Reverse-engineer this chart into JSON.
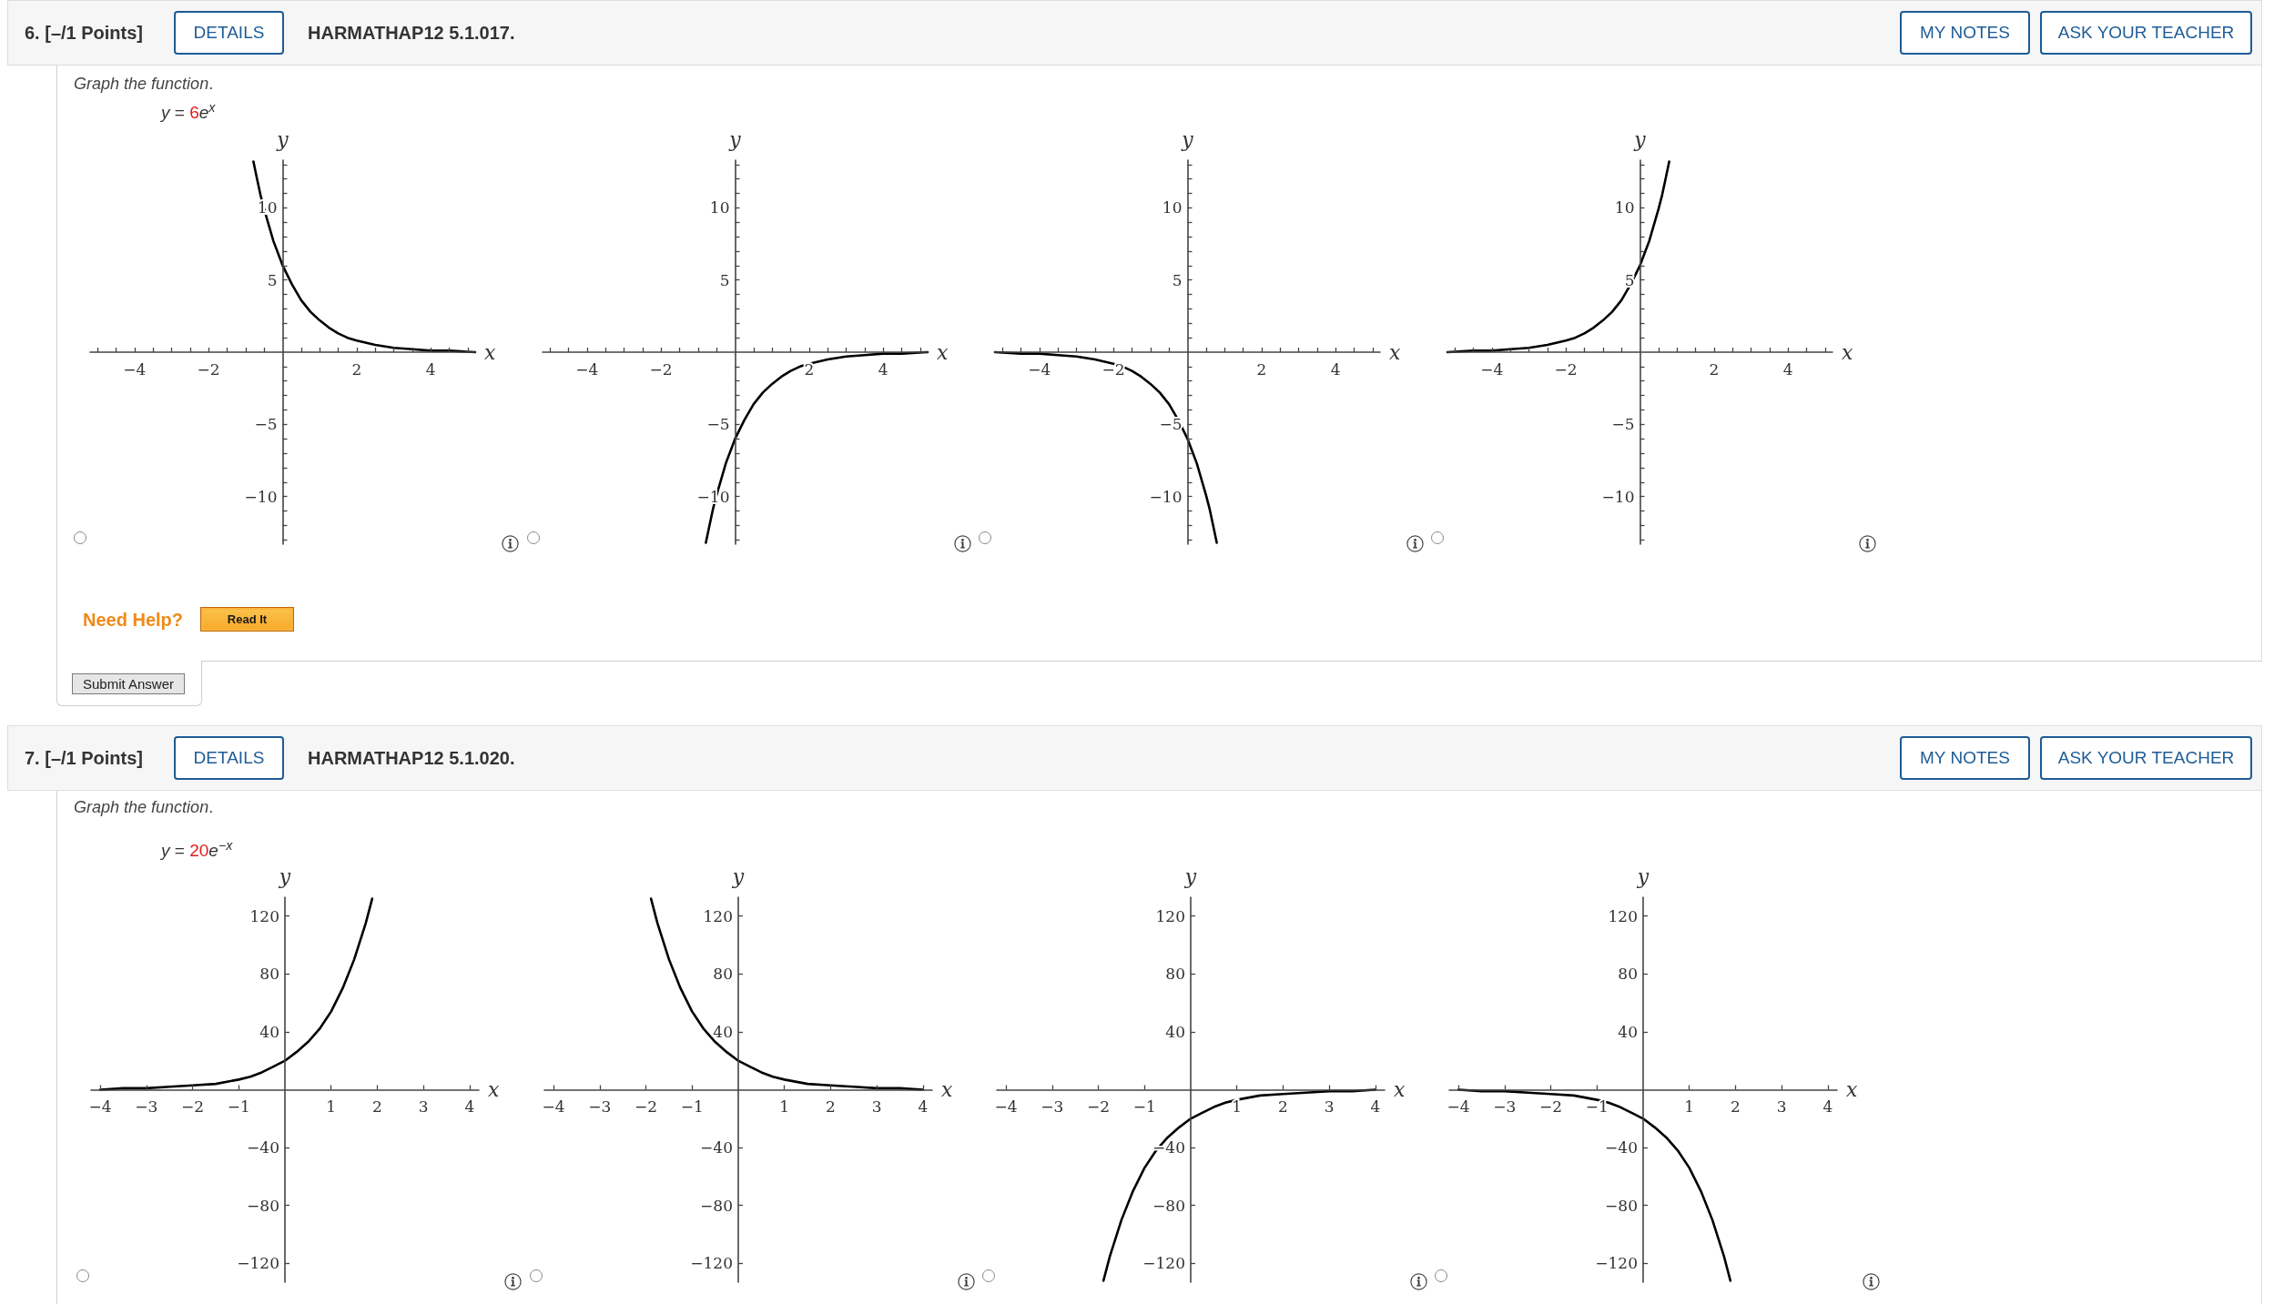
{
  "chart_data": [
    {
      "type": "line",
      "title": "Graph the function.",
      "subtitle": "y = 6e$^{x}$",
      "annotations": [
        "6. [–/1 Points]",
        "DETAILS",
        "HARMATHAP12 5.1.017.",
        "MY NOTES",
        "ASK YOUR TEACHER",
        "Need Help?",
        "Read It",
        "Submit Answer"
      ],
      "xlabel": "x",
      "ylabel": "y",
      "x": [
        -0.79,
        -0.7,
        -0.6,
        -0.5,
        -0.25,
        0,
        0.25,
        0.5,
        0.75,
        1,
        1.25,
        1.5,
        1.75,
        2,
        2.5,
        3,
        3.5,
        4,
        4.5,
        5.2
      ],
      "values": [
        13.2,
        12.1,
        10.9,
        9.9,
        7.7,
        6.0,
        4.7,
        3.6,
        2.8,
        2.2,
        1.7,
        1.3,
        1.0,
        0.8,
        0.5,
        0.3,
        0.2,
        0.1,
        0.1,
        0.0
      ],
      "color": "#000000",
      "xlim": [
        -5.2,
        5.2
      ],
      "ylim": [
        -13.3,
        13.3
      ],
      "xticks": [
        {
          "value": -5,
          "label": null
        },
        {
          "value": -4.5,
          "label": null
        },
        {
          "value": -4,
          "label": "−4"
        },
        {
          "value": -3.5,
          "label": null
        },
        {
          "value": -3,
          "label": null
        },
        {
          "value": -2.5,
          "label": null
        },
        {
          "value": -2,
          "label": "−2"
        },
        {
          "value": -1.5,
          "label": null
        },
        {
          "value": -1,
          "label": null
        },
        {
          "value": -0.5,
          "label": null
        },
        {
          "value": 0.5,
          "label": null
        },
        {
          "value": 1,
          "label": null
        },
        {
          "value": 1.5,
          "label": null
        },
        2,
        {
          "value": 2.5,
          "label": null
        },
        {
          "value": 3,
          "label": null
        },
        {
          "value": 3.5,
          "label": null
        },
        4,
        {
          "value": 4.5,
          "label": null
        },
        {
          "value": 5,
          "label": null
        }
      ],
      "yticks": [
        {
          "value": -13,
          "label": null
        },
        {
          "value": -12,
          "label": null
        },
        {
          "value": -11,
          "label": null
        },
        {
          "value": -10,
          "label": "−10"
        },
        {
          "value": -9,
          "label": null
        },
        {
          "value": -8,
          "label": null
        },
        {
          "value": -7,
          "label": null
        },
        {
          "value": -6,
          "label": null
        },
        {
          "value": -5,
          "label": "−5"
        },
        {
          "value": -4,
          "label": null
        },
        {
          "value": -3,
          "label": null
        },
        {
          "value": -2,
          "label": null
        },
        {
          "value": -1,
          "label": null
        },
        {
          "value": 1,
          "label": null
        },
        {
          "value": 2,
          "label": null
        },
        {
          "value": 3,
          "label": null
        },
        {
          "value": 4,
          "label": null
        },
        5,
        {
          "value": 6,
          "label": null
        },
        {
          "value": 7,
          "label": null
        },
        {
          "value": 8,
          "label": null
        },
        {
          "value": 9,
          "label": null
        },
        10,
        {
          "value": 11,
          "label": null
        },
        {
          "value": 12,
          "label": null
        },
        {
          "value": 13,
          "label": null
        }
      ]
    },
    {
      "type": "line",
      "xlabel": "x",
      "ylabel": "y",
      "x": [
        -0.79,
        -0.7,
        -0.6,
        -0.5,
        -0.25,
        0,
        0.25,
        0.5,
        0.75,
        1,
        1.25,
        1.5,
        1.75,
        2,
        2.5,
        3,
        3.5,
        4,
        4.5,
        5.2
      ],
      "values": [
        -13.2,
        -12.1,
        -10.9,
        -9.9,
        -7.7,
        -6.0,
        -4.7,
        -3.6,
        -2.8,
        -2.2,
        -1.7,
        -1.3,
        -1.0,
        -0.8,
        -0.5,
        -0.3,
        -0.2,
        -0.1,
        -0.1,
        0.0
      ],
      "color": "#000000",
      "xlim": [
        -5.2,
        5.2
      ],
      "ylim": [
        -13.3,
        13.3
      ],
      "xticks": [
        {
          "value": -5,
          "label": null
        },
        {
          "value": -4.5,
          "label": null
        },
        {
          "value": -4,
          "label": "−4"
        },
        {
          "value": -3.5,
          "label": null
        },
        {
          "value": -3,
          "label": null
        },
        {
          "value": -2.5,
          "label": null
        },
        {
          "value": -2,
          "label": "−2"
        },
        {
          "value": -1.5,
          "label": null
        },
        {
          "value": -1,
          "label": null
        },
        {
          "value": -0.5,
          "label": null
        },
        {
          "value": 0.5,
          "label": null
        },
        {
          "value": 1,
          "label": null
        },
        {
          "value": 1.5,
          "label": null
        },
        2,
        {
          "value": 2.5,
          "label": null
        },
        {
          "value": 3,
          "label": null
        },
        {
          "value": 3.5,
          "label": null
        },
        4,
        {
          "value": 4.5,
          "label": null
        },
        {
          "value": 5,
          "label": null
        }
      ],
      "yticks": [
        {
          "value": -13,
          "label": null
        },
        {
          "value": -12,
          "label": null
        },
        {
          "value": -11,
          "label": null
        },
        {
          "value": -10,
          "label": "−10"
        },
        {
          "value": -9,
          "label": null
        },
        {
          "value": -8,
          "label": null
        },
        {
          "value": -7,
          "label": null
        },
        {
          "value": -6,
          "label": null
        },
        {
          "value": -5,
          "label": "−5"
        },
        {
          "value": -4,
          "label": null
        },
        {
          "value": -3,
          "label": null
        },
        {
          "value": -2,
          "label": null
        },
        {
          "value": -1,
          "label": null
        },
        {
          "value": 1,
          "label": null
        },
        {
          "value": 2,
          "label": null
        },
        {
          "value": 3,
          "label": null
        },
        {
          "value": 4,
          "label": null
        },
        5,
        {
          "value": 6,
          "label": null
        },
        {
          "value": 7,
          "label": null
        },
        {
          "value": 8,
          "label": null
        },
        {
          "value": 9,
          "label": null
        },
        10,
        {
          "value": 11,
          "label": null
        },
        {
          "value": 12,
          "label": null
        },
        {
          "value": 13,
          "label": null
        }
      ]
    },
    {
      "type": "line",
      "xlabel": "x",
      "ylabel": "y",
      "x": [
        -5.2,
        -4.5,
        -4,
        -3.5,
        -3,
        -2.5,
        -2,
        -1.75,
        -1.5,
        -1.25,
        -1,
        -0.75,
        -0.5,
        -0.25,
        0,
        0.25,
        0.5,
        0.6,
        0.7,
        0.79
      ],
      "values": [
        0.0,
        -0.1,
        -0.1,
        -0.2,
        -0.3,
        -0.5,
        -0.8,
        -1.0,
        -1.3,
        -1.7,
        -2.2,
        -2.8,
        -3.6,
        -4.7,
        -6.0,
        -7.7,
        -9.9,
        -10.9,
        -12.1,
        -13.2
      ],
      "color": "#000000",
      "xlim": [
        -5.2,
        5.2
      ],
      "ylim": [
        -13.3,
        13.3
      ],
      "xticks": [
        {
          "value": -5,
          "label": null
        },
        {
          "value": -4.5,
          "label": null
        },
        {
          "value": -4,
          "label": "−4"
        },
        {
          "value": -3.5,
          "label": null
        },
        {
          "value": -3,
          "label": null
        },
        {
          "value": -2.5,
          "label": null
        },
        {
          "value": -2,
          "label": "−2"
        },
        {
          "value": -1.5,
          "label": null
        },
        {
          "value": -1,
          "label": null
        },
        {
          "value": -0.5,
          "label": null
        },
        {
          "value": 0.5,
          "label": null
        },
        {
          "value": 1,
          "label": null
        },
        {
          "value": 1.5,
          "label": null
        },
        2,
        {
          "value": 2.5,
          "label": null
        },
        {
          "value": 3,
          "label": null
        },
        {
          "value": 3.5,
          "label": null
        },
        4,
        {
          "value": 4.5,
          "label": null
        },
        {
          "value": 5,
          "label": null
        }
      ],
      "yticks": [
        {
          "value": -13,
          "label": null
        },
        {
          "value": -12,
          "label": null
        },
        {
          "value": -11,
          "label": null
        },
        {
          "value": -10,
          "label": "−10"
        },
        {
          "value": -9,
          "label": null
        },
        {
          "value": -8,
          "label": null
        },
        {
          "value": -7,
          "label": null
        },
        {
          "value": -6,
          "label": null
        },
        {
          "value": -5,
          "label": "−5"
        },
        {
          "value": -4,
          "label": null
        },
        {
          "value": -3,
          "label": null
        },
        {
          "value": -2,
          "label": null
        },
        {
          "value": -1,
          "label": null
        },
        {
          "value": 1,
          "label": null
        },
        {
          "value": 2,
          "label": null
        },
        {
          "value": 3,
          "label": null
        },
        {
          "value": 4,
          "label": null
        },
        5,
        {
          "value": 6,
          "label": null
        },
        {
          "value": 7,
          "label": null
        },
        {
          "value": 8,
          "label": null
        },
        {
          "value": 9,
          "label": null
        },
        10,
        {
          "value": 11,
          "label": null
        },
        {
          "value": 12,
          "label": null
        },
        {
          "value": 13,
          "label": null
        }
      ]
    },
    {
      "type": "line",
      "xlabel": "x",
      "ylabel": "y",
      "x": [
        -5.2,
        -4.5,
        -4,
        -3.5,
        -3,
        -2.5,
        -2,
        -1.75,
        -1.5,
        -1.25,
        -1,
        -0.75,
        -0.5,
        -0.25,
        0,
        0.25,
        0.5,
        0.6,
        0.7,
        0.79
      ],
      "values": [
        0.0,
        0.1,
        0.1,
        0.2,
        0.3,
        0.5,
        0.8,
        1.0,
        1.3,
        1.7,
        2.2,
        2.8,
        3.6,
        4.7,
        6.0,
        7.7,
        9.9,
        10.9,
        12.1,
        13.2
      ],
      "color": "#000000",
      "xlim": [
        -5.2,
        5.2
      ],
      "ylim": [
        -13.3,
        13.3
      ],
      "xticks": [
        {
          "value": -5,
          "label": null
        },
        {
          "value": -4.5,
          "label": null
        },
        {
          "value": -4,
          "label": "−4"
        },
        {
          "value": -3.5,
          "label": null
        },
        {
          "value": -3,
          "label": null
        },
        {
          "value": -2.5,
          "label": null
        },
        {
          "value": -2,
          "label": "−2"
        },
        {
          "value": -1.5,
          "label": null
        },
        {
          "value": -1,
          "label": null
        },
        {
          "value": -0.5,
          "label": null
        },
        {
          "value": 0.5,
          "label": null
        },
        {
          "value": 1,
          "label": null
        },
        {
          "value": 1.5,
          "label": null
        },
        2,
        {
          "value": 2.5,
          "label": null
        },
        {
          "value": 3,
          "label": null
        },
        {
          "value": 3.5,
          "label": null
        },
        4,
        {
          "value": 4.5,
          "label": null
        },
        {
          "value": 5,
          "label": null
        }
      ],
      "yticks": [
        {
          "value": -13,
          "label": null
        },
        {
          "value": -12,
          "label": null
        },
        {
          "value": -11,
          "label": null
        },
        {
          "value": -10,
          "label": "−10"
        },
        {
          "value": -9,
          "label": null
        },
        {
          "value": -8,
          "label": null
        },
        {
          "value": -7,
          "label": null
        },
        {
          "value": -6,
          "label": null
        },
        {
          "value": -5,
          "label": "−5"
        },
        {
          "value": -4,
          "label": null
        },
        {
          "value": -3,
          "label": null
        },
        {
          "value": -2,
          "label": null
        },
        {
          "value": -1,
          "label": null
        },
        {
          "value": 1,
          "label": null
        },
        {
          "value": 2,
          "label": null
        },
        {
          "value": 3,
          "label": null
        },
        {
          "value": 4,
          "label": null
        },
        5,
        {
          "value": 6,
          "label": null
        },
        {
          "value": 7,
          "label": null
        },
        {
          "value": 8,
          "label": null
        },
        {
          "value": 9,
          "label": null
        },
        10,
        {
          "value": 11,
          "label": null
        },
        {
          "value": 12,
          "label": null
        },
        {
          "value": 13,
          "label": null
        }
      ]
    },
    {
      "type": "line",
      "title": "Graph the function.",
      "subtitle": "y = 20e$^{−x}$",
      "annotations": [
        "7. [–/1 Points]",
        "DETAILS",
        "HARMATHAP12 5.1.020.",
        "MY NOTES",
        "ASK YOUR TEACHER"
      ],
      "xlabel": "x",
      "ylabel": "y",
      "x": [
        -4,
        -3.5,
        -3,
        -2.5,
        -2,
        -1.5,
        -1,
        -0.75,
        -0.5,
        -0.25,
        0,
        0.25,
        0.5,
        0.75,
        1,
        1.25,
        1.5,
        1.75,
        1.89
      ],
      "values": [
        0,
        1,
        1,
        2,
        3,
        4,
        7,
        9,
        12,
        16,
        20,
        26,
        33,
        42,
        54,
        70,
        90,
        115,
        132
      ],
      "color": "#000000",
      "xlim": [
        -4.2,
        4.2
      ],
      "ylim": [
        -133,
        133
      ],
      "xticks": [
        {
          "value": -4,
          "label": "−4"
        },
        {
          "value": -3,
          "label": "−3"
        },
        {
          "value": -2,
          "label": "−2"
        },
        {
          "value": -1,
          "label": "−1"
        },
        1,
        2,
        3,
        4
      ],
      "yticks": [
        {
          "value": -120,
          "label": "−120"
        },
        {
          "value": -80,
          "label": "−80"
        },
        {
          "value": -40,
          "label": "−40"
        },
        40,
        80,
        120
      ]
    },
    {
      "type": "line",
      "xlabel": "x",
      "ylabel": "y",
      "x": [
        -1.89,
        -1.75,
        -1.5,
        -1.25,
        -1,
        -0.75,
        -0.5,
        -0.25,
        0,
        0.25,
        0.5,
        0.75,
        1,
        1.5,
        2,
        2.5,
        3,
        3.5,
        4
      ],
      "values": [
        132,
        115,
        90,
        70,
        54,
        42,
        33,
        26,
        20,
        16,
        12,
        9,
        7,
        4,
        3,
        2,
        1,
        1,
        0
      ],
      "color": "#000000",
      "xlim": [
        -4.2,
        4.2
      ],
      "ylim": [
        -133,
        133
      ],
      "xticks": [
        {
          "value": -4,
          "label": "−4"
        },
        {
          "value": -3,
          "label": "−3"
        },
        {
          "value": -2,
          "label": "−2"
        },
        {
          "value": -1,
          "label": "−1"
        },
        1,
        2,
        3,
        4
      ],
      "yticks": [
        {
          "value": -120,
          "label": "−120"
        },
        {
          "value": -80,
          "label": "−80"
        },
        {
          "value": -40,
          "label": "−40"
        },
        40,
        80,
        120
      ]
    },
    {
      "type": "line",
      "xlabel": "x",
      "ylabel": "y",
      "x": [
        -1.89,
        -1.75,
        -1.5,
        -1.25,
        -1,
        -0.75,
        -0.5,
        -0.25,
        0,
        0.25,
        0.5,
        0.75,
        1,
        1.5,
        2,
        2.5,
        3,
        3.5,
        4
      ],
      "values": [
        -132,
        -115,
        -90,
        -70,
        -54,
        -42,
        -33,
        -26,
        -20,
        -16,
        -12,
        -9,
        -7,
        -4,
        -3,
        -2,
        -1,
        -1,
        0
      ],
      "color": "#000000",
      "xlim": [
        -4.2,
        4.2
      ],
      "ylim": [
        -133,
        133
      ],
      "xticks": [
        {
          "value": -4,
          "label": "−4"
        },
        {
          "value": -3,
          "label": "−3"
        },
        {
          "value": -2,
          "label": "−2"
        },
        {
          "value": -1,
          "label": "−1"
        },
        1,
        2,
        3,
        4
      ],
      "yticks": [
        {
          "value": -120,
          "label": "−120"
        },
        {
          "value": -80,
          "label": "−80"
        },
        {
          "value": -40,
          "label": "−40"
        },
        40,
        80,
        120
      ]
    },
    {
      "type": "line",
      "xlabel": "x",
      "ylabel": "y",
      "x": [
        -4,
        -3.5,
        -3,
        -2.5,
        -2,
        -1.5,
        -1,
        -0.75,
        -0.5,
        -0.25,
        0,
        0.25,
        0.5,
        0.75,
        1,
        1.25,
        1.5,
        1.75,
        1.89
      ],
      "values": [
        0,
        -1,
        -1,
        -2,
        -3,
        -4,
        -7,
        -9,
        -12,
        -16,
        -20,
        -26,
        -33,
        -42,
        -54,
        -70,
        -90,
        -115,
        -132
      ],
      "color": "#000000",
      "xlim": [
        -4.2,
        4.2
      ],
      "ylim": [
        -133,
        133
      ],
      "xticks": [
        {
          "value": -4,
          "label": "−4"
        },
        {
          "value": -3,
          "label": "−3"
        },
        {
          "value": -2,
          "label": "−2"
        },
        {
          "value": -1,
          "label": "−1"
        },
        1,
        2,
        3,
        4
      ],
      "yticks": [
        {
          "value": -120,
          "label": "−120"
        },
        {
          "value": -80,
          "label": "−80"
        },
        {
          "value": -40,
          "label": "−40"
        },
        40,
        80,
        120
      ]
    }
  ]
}
